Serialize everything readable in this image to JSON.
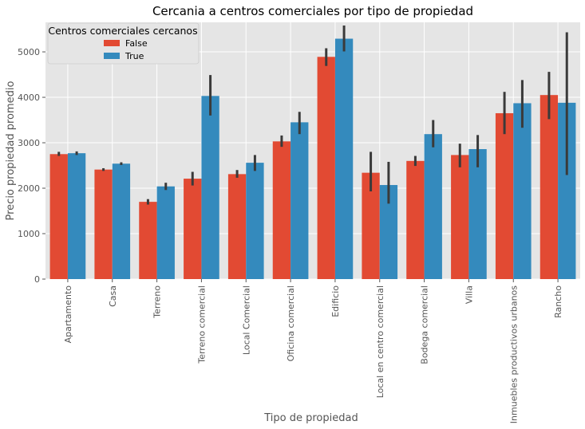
{
  "chart_data": {
    "type": "bar",
    "title": "Cercania a centros comerciales por tipo de propiedad",
    "xlabel": "Tipo de propiedad",
    "ylabel": "Precio propiedad promedio",
    "ylim": [
      0,
      5650
    ],
    "yticks": [
      0,
      1000,
      2000,
      3000,
      4000,
      5000
    ],
    "grid": true,
    "legend": {
      "title": "Centros comerciales cercanos",
      "position": "top-left"
    },
    "categories": [
      "Apartamento",
      "Casa",
      "Terreno",
      "Terreno comercial",
      "Local Comercial",
      "Oficina comercial",
      "Edificio",
      "Local en centro comercial",
      "Bodega comercial",
      "Villa",
      "Inmuebles productivos urbanos",
      "Rancho"
    ],
    "series": [
      {
        "name": "False",
        "color": "#e24a33",
        "values": [
          2750,
          2410,
          1700,
          2210,
          2310,
          3030,
          4890,
          2340,
          2600,
          2730,
          3650,
          4050
        ],
        "ci_low": [
          2710,
          2380,
          1640,
          2060,
          2230,
          2910,
          4690,
          1930,
          2490,
          2460,
          3190,
          3520
        ],
        "ci_high": [
          2800,
          2440,
          1760,
          2360,
          2400,
          3160,
          5080,
          2800,
          2710,
          2980,
          4120,
          4560
        ]
      },
      {
        "name": "True",
        "color": "#348abd",
        "values": [
          2770,
          2540,
          2040,
          4030,
          2560,
          3450,
          5290,
          2070,
          3190,
          2860,
          3870,
          3880
        ],
        "ci_low": [
          2730,
          2510,
          1960,
          3600,
          2380,
          3190,
          5010,
          1660,
          2900,
          2460,
          3330,
          2290
        ],
        "ci_high": [
          2810,
          2570,
          2120,
          4490,
          2730,
          3680,
          5580,
          2580,
          3500,
          3170,
          4380,
          5430
        ]
      }
    ]
  }
}
